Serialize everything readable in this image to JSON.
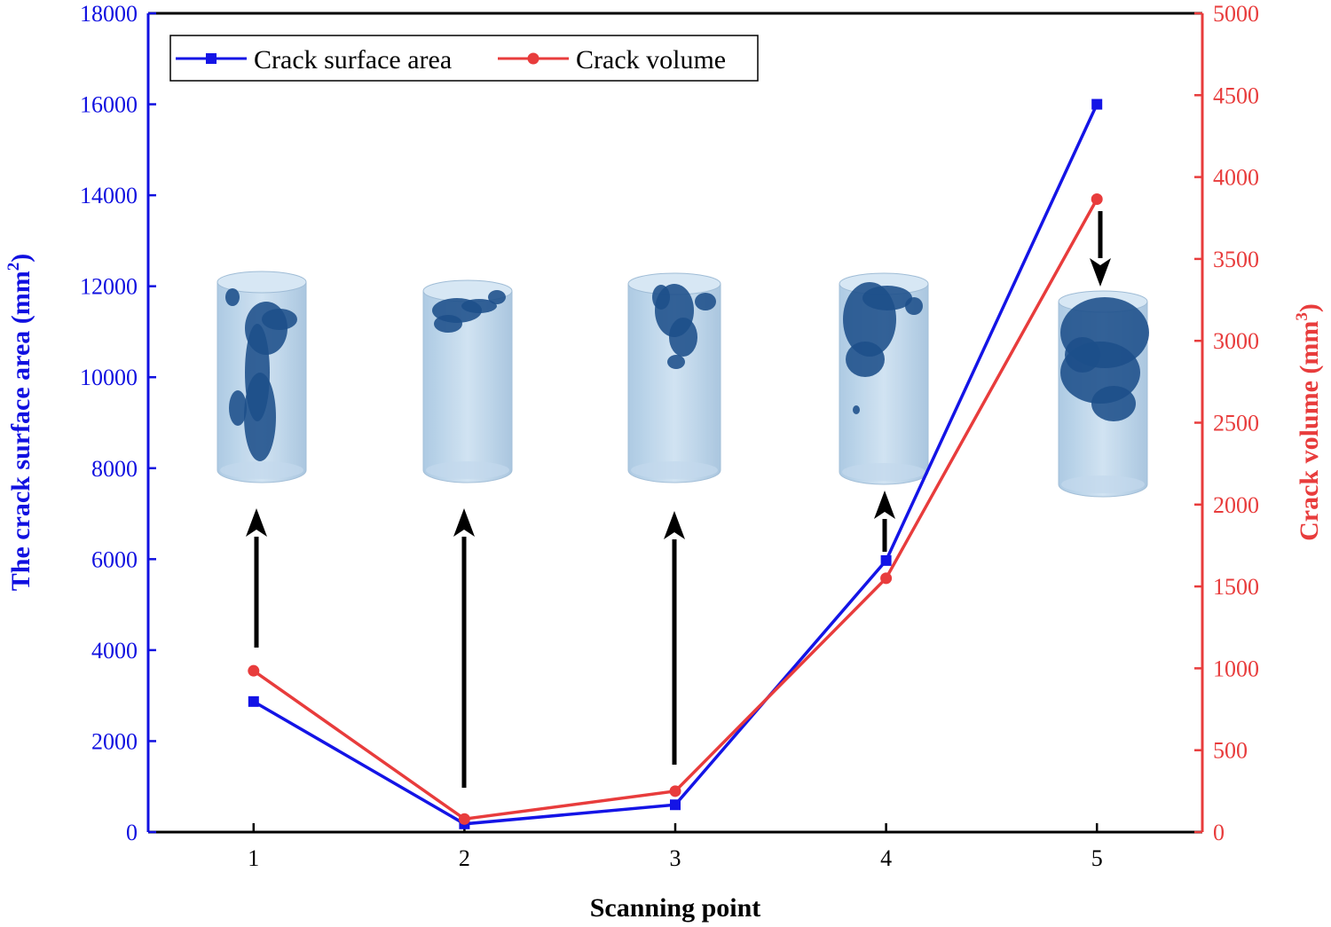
{
  "chart_data": {
    "type": "line",
    "xlabel": "Scanning point",
    "ylabel_left": "The crack surface area (mm²)",
    "ylabel_left_main": "The crack surface area (mm",
    "ylabel_left_sup": "2",
    "ylabel_left_close": ")",
    "ylabel_right": "Crack volume (mm³)",
    "ylabel_right_main": "Crack volume (mm",
    "ylabel_right_sup": "3",
    "ylabel_right_close": ")",
    "x": [
      1,
      2,
      3,
      4,
      5
    ],
    "xlim": [
      0.5,
      5.5
    ],
    "ylim_left": [
      0,
      18000
    ],
    "ylim_right": [
      0,
      5000
    ],
    "yticks_left": [
      0,
      2000,
      4000,
      6000,
      8000,
      10000,
      12000,
      14000,
      16000,
      18000
    ],
    "yticks_right": [
      0,
      500,
      1000,
      1500,
      2000,
      2500,
      3000,
      3500,
      4000,
      4500,
      5000
    ],
    "xticks": [
      "1",
      "2",
      "3",
      "4",
      "5"
    ],
    "legend_position": "top-left",
    "series": [
      {
        "name": "Crack surface area",
        "axis": "left",
        "marker": "square",
        "color": "#1414e6",
        "values": [
          2870,
          180,
          600,
          5970,
          16000
        ]
      },
      {
        "name": "Crack volume",
        "axis": "right",
        "marker": "circle",
        "color": "#e83c3c",
        "values": [
          985,
          80,
          250,
          1550,
          3865
        ]
      }
    ],
    "annotations": {
      "type": "crack-scan-insets",
      "count": 5,
      "arrow_color": "#000000"
    },
    "colors": {
      "left_axis": "#1010e0",
      "right_axis": "#e83c3c",
      "specimen_fill": "#b8d4ea",
      "crack": "#1d4f8a"
    }
  }
}
